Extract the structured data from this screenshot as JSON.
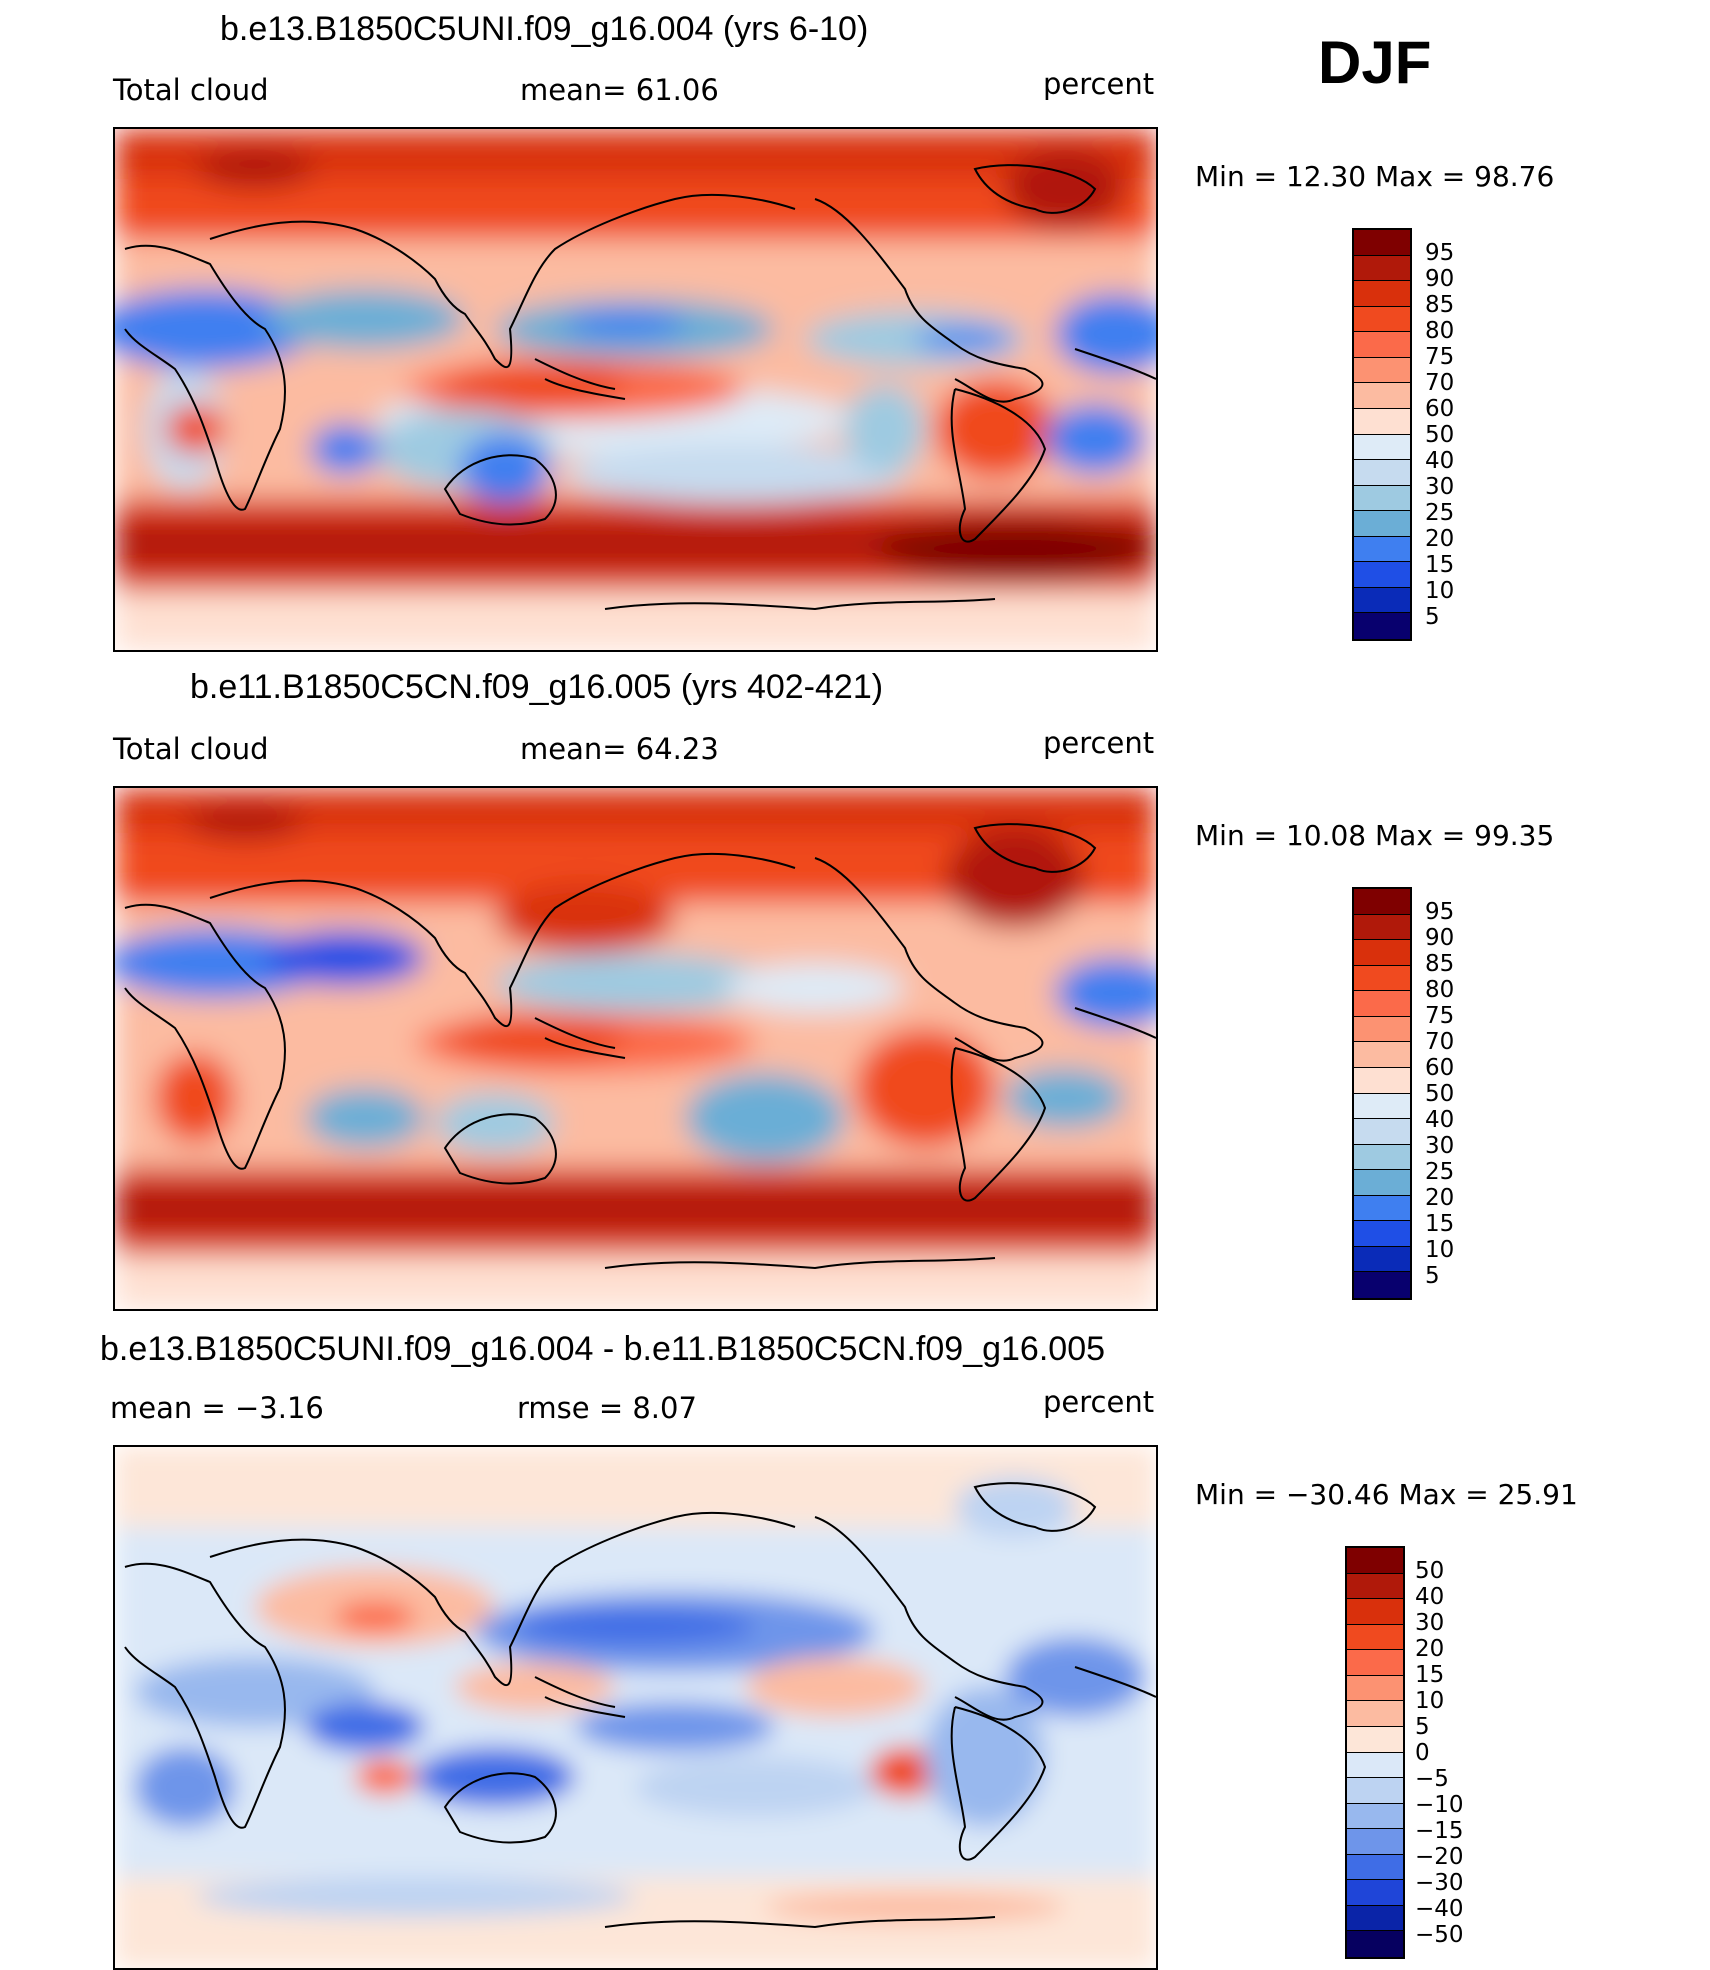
{
  "season": "DJF",
  "panels": [
    {
      "title": "b.e13.B1850C5UNI.f09_g16.004 (yrs 6-10)",
      "left_label": "Total cloud",
      "center_label": "mean=   61.06",
      "right_label": "percent",
      "minmax": "Min  =   12.30  Max  =   98.76",
      "colorbar_labels": [
        "95",
        "90",
        "85",
        "80",
        "75",
        "70",
        "60",
        "50",
        "40",
        "30",
        "25",
        "20",
        "15",
        "10",
        "5"
      ]
    },
    {
      "title": "b.e11.B1850C5CN.f09_g16.005 (yrs 402-421)",
      "left_label": "Total cloud",
      "center_label": "mean=   64.23",
      "right_label": "percent",
      "minmax": "Min  =   10.08  Max  =   99.35",
      "colorbar_labels": [
        "95",
        "90",
        "85",
        "80",
        "75",
        "70",
        "60",
        "50",
        "40",
        "30",
        "25",
        "20",
        "15",
        "10",
        "5"
      ]
    },
    {
      "title": "b.e13.B1850C5UNI.f09_g16.004 - b.e11.B1850C5CN.f09_g16.005",
      "left_label": "mean  =   −3.16",
      "center_label": "rmse  =    8.07",
      "right_label": "percent",
      "minmax": "Min  = −30.46  Max  =   25.91",
      "colorbar_labels": [
        "50",
        "40",
        "30",
        "20",
        "15",
        "10",
        "5",
        "0",
        "−5",
        "−10",
        "−15",
        "−20",
        "−30",
        "−40",
        "−50"
      ]
    }
  ],
  "colors": {
    "scale16": [
      "#7f0000",
      "#b0190a",
      "#d9300c",
      "#f04a1f",
      "#fb6a4a",
      "#fc9272",
      "#fcbba1",
      "#fee0d2",
      "#deebf7",
      "#c6dbef",
      "#9ecae1",
      "#6baed6",
      "#3f7ff0",
      "#1f4fe6",
      "#0a2bb8",
      "#08006e"
    ],
    "diff16": [
      "#7f0000",
      "#b0190a",
      "#d9300c",
      "#f04a1f",
      "#fb6a4a",
      "#fc9272",
      "#fcbba1",
      "#fde6d8",
      "#dbe8f8",
      "#bdd3f2",
      "#98b8ee",
      "#6e95ea",
      "#3f6de6",
      "#1f45d8",
      "#0a24a8",
      "#060060"
    ],
    "coast": "#000000"
  }
}
